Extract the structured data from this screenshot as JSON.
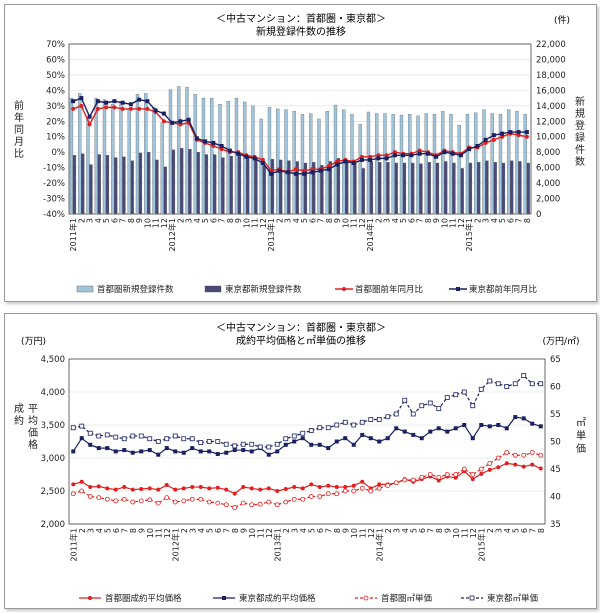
{
  "chart_data": [
    {
      "type": "bar+line",
      "title": "＜中古マンション：首都圏・東京都＞",
      "subtitle": "新規登録件数の推移",
      "ylabel_left": "前年同月比",
      "ylabel_right": "新規登録件数",
      "right_unit": "(件)",
      "ylim_left": [
        -40,
        70
      ],
      "ylim_right": [
        0,
        22000
      ],
      "yticks_left": [
        "70%",
        "60%",
        "50%",
        "40%",
        "30%",
        "20%",
        "10%",
        "0%",
        "-10%",
        "-20%",
        "-30%",
        "-40%"
      ],
      "yticks_right": [
        "22,000",
        "20,000",
        "18,000",
        "16,000",
        "14,000",
        "12,000",
        "10,000",
        "8,000",
        "6,000",
        "4,000",
        "2,000",
        "0"
      ],
      "x_month_labels": [
        "1",
        "2",
        "3",
        "4",
        "5",
        "6",
        "7",
        "8",
        "9",
        "10",
        "11",
        "12",
        "1",
        "2",
        "3",
        "4",
        "5",
        "6",
        "7",
        "8",
        "9",
        "10",
        "11",
        "12",
        "1",
        "2",
        "3",
        "4",
        "5",
        "6",
        "7",
        "8",
        "9",
        "10",
        "11",
        "12",
        "1",
        "2",
        "3",
        "4",
        "5",
        "6",
        "7",
        "8",
        "9",
        "10",
        "11",
        "12",
        "1",
        "2",
        "3",
        "4",
        "5",
        "6",
        "7",
        "8"
      ],
      "year_labels": [
        {
          "label": "2011年",
          "index": 0
        },
        {
          "label": "2012年",
          "index": 12
        },
        {
          "label": "2013年",
          "index": 24
        },
        {
          "label": "2014年",
          "index": 36
        },
        {
          "label": "2015年",
          "index": 48
        }
      ],
      "series": [
        {
          "name": "首都圏新規登録件数",
          "kind": "bar",
          "axis": "right",
          "color": "#9fc4dc",
          "values": [
            15000,
            15600,
            12500,
            15000,
            14800,
            14200,
            14500,
            13600,
            15500,
            15600,
            13800,
            11800,
            16100,
            16500,
            16400,
            15500,
            15000,
            15000,
            14200,
            14600,
            15000,
            14500,
            14000,
            12300,
            13800,
            13600,
            13500,
            13300,
            12900,
            13000,
            12300,
            13300,
            14100,
            13500,
            12900,
            11600,
            13200,
            13000,
            13000,
            12900,
            12800,
            12900,
            12700,
            13000,
            12900,
            13300,
            12900,
            11500,
            12900,
            13100,
            13500,
            13000,
            12900,
            13500,
            13300,
            12900
          ]
        },
        {
          "name": "東京都新規登録件数",
          "kind": "bar",
          "axis": "right",
          "color": "#4a4a7a",
          "values": [
            7600,
            7800,
            6400,
            7700,
            7600,
            7300,
            7400,
            6900,
            7900,
            8000,
            7000,
            6100,
            8300,
            8500,
            8400,
            8000,
            7700,
            7700,
            7300,
            7500,
            7700,
            7400,
            7200,
            6300,
            7100,
            7000,
            6900,
            6800,
            6600,
            6700,
            6300,
            6800,
            7200,
            6900,
            6600,
            5900,
            6800,
            6700,
            6700,
            6600,
            6600,
            6600,
            6500,
            6700,
            6600,
            6800,
            6600,
            5900,
            6600,
            6700,
            6900,
            6700,
            6600,
            6900,
            6800,
            6600
          ]
        },
        {
          "name": "首都圏前年同月比",
          "kind": "line",
          "axis": "left",
          "color": "#e02020",
          "values": [
            28,
            30,
            18,
            28,
            29,
            29,
            28,
            28,
            28,
            28,
            26,
            20,
            19,
            18,
            19,
            8,
            6,
            4,
            2,
            0,
            0,
            -2,
            -3,
            -5,
            -12,
            -11,
            -13,
            -11,
            -12,
            -11,
            -11,
            -9,
            -6,
            -5,
            -6,
            -3,
            -3,
            -2,
            -2,
            0,
            -1,
            -1,
            1,
            0,
            -2,
            1,
            0,
            -1,
            3,
            3,
            6,
            8,
            10,
            12,
            11,
            10
          ]
        },
        {
          "name": "東京都前年同月比",
          "kind": "line",
          "axis": "left",
          "color": "#1a2060",
          "values": [
            33,
            35,
            23,
            33,
            32,
            33,
            32,
            31,
            34,
            33,
            27,
            25,
            19,
            20,
            21,
            9,
            7,
            6,
            4,
            1,
            -1,
            -3,
            -4,
            -7,
            -14,
            -12,
            -13,
            -14,
            -14,
            -13,
            -12,
            -11,
            -8,
            -6,
            -7,
            -5,
            -5,
            -4,
            -4,
            -2,
            -2,
            -2,
            -1,
            -1,
            -3,
            0,
            -1,
            -2,
            2,
            4,
            8,
            11,
            12,
            13,
            13,
            13
          ]
        }
      ],
      "legend": [
        "首都圏新規登録件数",
        "東京都新規登録件数",
        "首都圏前年同月比",
        "東京都前年同月比"
      ],
      "legend_position": "bottom"
    },
    {
      "type": "line",
      "title": "＜中古マンション：首都圏・東京都＞",
      "subtitle": "成約平均価格と㎡単価の推移",
      "ylabel_left": "成約平均価格",
      "ylabel_right": "㎡単価",
      "left_unit": "(万円)",
      "right_unit": "(万円/㎡)",
      "ylim_left": [
        2000,
        4500
      ],
      "ylim_right": [
        35,
        65
      ],
      "yticks_left": [
        "4,500",
        "4,000",
        "3,500",
        "3,000",
        "2,500",
        "2,000"
      ],
      "yticks_right": [
        "65",
        "60",
        "55",
        "50",
        "45",
        "40",
        "35"
      ],
      "x_month_labels": [
        "1",
        "2",
        "3",
        "4",
        "5",
        "6",
        "7",
        "8",
        "9",
        "10",
        "11",
        "12",
        "1",
        "2",
        "3",
        "4",
        "5",
        "6",
        "7",
        "8",
        "9",
        "10",
        "11",
        "12",
        "1",
        "2",
        "3",
        "4",
        "5",
        "6",
        "7",
        "8",
        "9",
        "10",
        "11",
        "12",
        "1",
        "2",
        "3",
        "4",
        "5",
        "6",
        "7",
        "8",
        "9",
        "10",
        "11",
        "12",
        "1",
        "2",
        "3",
        "4",
        "5",
        "6",
        "7",
        "8"
      ],
      "year_labels": [
        {
          "label": "2011年",
          "index": 0
        },
        {
          "label": "2012年",
          "index": 12
        },
        {
          "label": "2013年",
          "index": 24
        },
        {
          "label": "2014年",
          "index": 36
        },
        {
          "label": "2015年",
          "index": 48
        }
      ],
      "series": [
        {
          "name": "首都圏成約平均価格",
          "kind": "line",
          "axis": "left",
          "color": "#e02020",
          "dash": false,
          "marker": "circle",
          "values": [
            2600,
            2640,
            2560,
            2570,
            2540,
            2520,
            2560,
            2520,
            2530,
            2540,
            2520,
            2590,
            2520,
            2540,
            2560,
            2560,
            2540,
            2550,
            2520,
            2460,
            2560,
            2540,
            2520,
            2540,
            2500,
            2530,
            2560,
            2540,
            2600,
            2560,
            2580,
            2560,
            2560,
            2580,
            2640,
            2540,
            2600,
            2600,
            2620,
            2680,
            2640,
            2680,
            2720,
            2660,
            2720,
            2700,
            2800,
            2680,
            2760,
            2820,
            2860,
            2920,
            2900,
            2870,
            2900,
            2840
          ]
        },
        {
          "name": "東京都成約平均価格",
          "kind": "line",
          "axis": "left",
          "color": "#1a2060",
          "dash": false,
          "marker": "square",
          "values": [
            3100,
            3300,
            3200,
            3150,
            3150,
            3100,
            3120,
            3080,
            3100,
            3120,
            3050,
            3150,
            3100,
            3080,
            3150,
            3100,
            3100,
            3060,
            3080,
            3120,
            3120,
            3100,
            3150,
            3050,
            3100,
            3200,
            3250,
            3300,
            3200,
            3200,
            3150,
            3250,
            3300,
            3200,
            3350,
            3300,
            3250,
            3300,
            3450,
            3400,
            3350,
            3300,
            3400,
            3450,
            3400,
            3450,
            3500,
            3300,
            3500,
            3480,
            3500,
            3450,
            3620,
            3600,
            3520,
            3480
          ]
        },
        {
          "name": "首都圏㎡単価",
          "kind": "line",
          "axis": "right",
          "color": "#e02020",
          "dash": true,
          "marker": "open-circle",
          "values": [
            40.5,
            41.0,
            40.0,
            39.8,
            39.5,
            39.2,
            39.5,
            39.0,
            39.2,
            39.4,
            38.8,
            39.8,
            39.0,
            39.2,
            39.5,
            39.5,
            39.0,
            38.8,
            38.5,
            38.0,
            38.8,
            38.5,
            38.6,
            39.0,
            38.5,
            39.0,
            39.5,
            39.5,
            40.0,
            40.0,
            40.5,
            40.5,
            41.0,
            41.0,
            41.5,
            41.0,
            41.5,
            42.0,
            42.5,
            43.0,
            43.0,
            43.5,
            44.0,
            43.5,
            44.0,
            44.0,
            45.0,
            44.0,
            45.0,
            46.0,
            47.0,
            48.0,
            47.5,
            47.5,
            48.0,
            47.5
          ]
        },
        {
          "name": "東京都㎡単価",
          "kind": "line",
          "axis": "right",
          "color": "#1a2060",
          "dash": true,
          "marker": "open-square",
          "values": [
            52.5,
            52.8,
            51.5,
            51.0,
            51.2,
            50.8,
            50.5,
            51.0,
            51.0,
            50.5,
            50.0,
            50.5,
            51.0,
            50.5,
            50.5,
            49.8,
            50.0,
            50.0,
            49.5,
            49.2,
            49.5,
            49.5,
            49.0,
            49.0,
            49.5,
            50.5,
            51.0,
            51.5,
            52.0,
            52.5,
            52.5,
            53.0,
            53.5,
            53.0,
            53.5,
            54.0,
            54.0,
            54.5,
            55.0,
            57.5,
            55.0,
            56.5,
            57.0,
            56.0,
            58.0,
            58.5,
            59.0,
            56.5,
            59.5,
            61.0,
            60.5,
            60.0,
            60.5,
            62.0,
            60.5,
            60.5
          ]
        }
      ],
      "legend": [
        "首都圏成約平均価格",
        "東京都成約平均価格",
        "首都圏㎡単価",
        "東京都㎡単価"
      ],
      "legend_position": "bottom"
    }
  ]
}
